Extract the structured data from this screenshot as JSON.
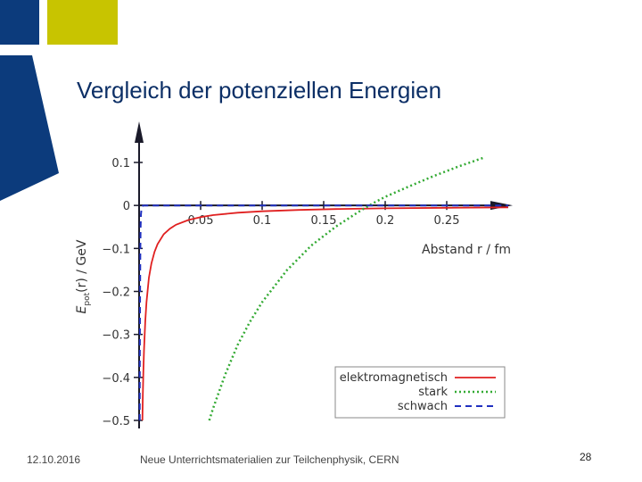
{
  "slide": {
    "title": "Vergleich der potenziellen Energien",
    "footer_date": "12.10.2016",
    "footer_source": "Neue Unterrichtsmaterialien zur Teilchenphysik, CERN",
    "page_number": "28",
    "colors": {
      "brand_blue": "#0c3b7c",
      "brand_yellow": "#c8c400",
      "title_color": "#0c2f66"
    }
  },
  "chart_data": {
    "type": "line",
    "title": "",
    "xlabel": "Abstand r / fm",
    "ylabel": "E_pot(r) / GeV",
    "ylabel_main": "E",
    "ylabel_sub": "pot",
    "ylabel_rest": "(r) / GeV",
    "xlim": [
      0,
      0.3
    ],
    "ylim": [
      -0.5,
      0.15
    ],
    "x_ticks": [
      {
        "value": 0.05,
        "label": "0.05"
      },
      {
        "value": 0.1,
        "label": "0.1"
      },
      {
        "value": 0.15,
        "label": "0.15"
      },
      {
        "value": 0.2,
        "label": "0.2"
      },
      {
        "value": 0.25,
        "label": "0.25"
      }
    ],
    "y_ticks": [
      {
        "value": 0.1,
        "label": "0.1"
      },
      {
        "value": 0,
        "label": "0"
      },
      {
        "value": -0.1,
        "label": "−0.1"
      },
      {
        "value": -0.2,
        "label": "−0.2"
      },
      {
        "value": -0.3,
        "label": "−0.3"
      },
      {
        "value": -0.4,
        "label": "−0.4"
      },
      {
        "value": -0.5,
        "label": "−0.5"
      }
    ],
    "grid": false,
    "legend_position": "bottom-right",
    "series": [
      {
        "name": "elektromagnetisch",
        "color": "#e02020",
        "dash": "solid",
        "x": [
          0.0027,
          0.003,
          0.0035,
          0.004,
          0.005,
          0.006,
          0.008,
          0.01,
          0.0125,
          0.015,
          0.02,
          0.025,
          0.03,
          0.04,
          0.05,
          0.06,
          0.08,
          0.1,
          0.13,
          0.16,
          0.2,
          0.25,
          0.3
        ],
        "y": [
          -0.5,
          -0.45,
          -0.385,
          -0.337,
          -0.27,
          -0.225,
          -0.168,
          -0.135,
          -0.108,
          -0.09,
          -0.067,
          -0.054,
          -0.045,
          -0.034,
          -0.027,
          -0.0225,
          -0.0168,
          -0.0135,
          -0.0104,
          -0.0084,
          -0.0067,
          -0.0054,
          -0.0045
        ]
      },
      {
        "name": "stark",
        "color": "#33aa33",
        "dash": "dotted",
        "x": [
          0.057,
          0.06,
          0.07,
          0.08,
          0.09,
          0.1,
          0.12,
          0.14,
          0.16,
          0.18,
          0.19,
          0.2,
          0.22,
          0.24,
          0.26,
          0.28
        ],
        "y": [
          -0.5,
          -0.473,
          -0.393,
          -0.325,
          -0.271,
          -0.225,
          -0.151,
          -0.093,
          -0.049,
          -0.012,
          0.005,
          0.02,
          0.045,
          0.069,
          0.091,
          0.111
        ]
      },
      {
        "name": "schwach",
        "color": "#2030c0",
        "dash": "dashed",
        "x": [
          0.0005,
          0.0006,
          0.0008,
          0.001,
          0.0012,
          0.0015,
          0.002,
          0.003,
          0.004,
          0.006,
          0.3
        ],
        "y": [
          -0.5,
          -0.37,
          -0.2,
          -0.1,
          -0.05,
          -0.02,
          -0.006,
          -0.001,
          0,
          0,
          0
        ]
      }
    ]
  }
}
